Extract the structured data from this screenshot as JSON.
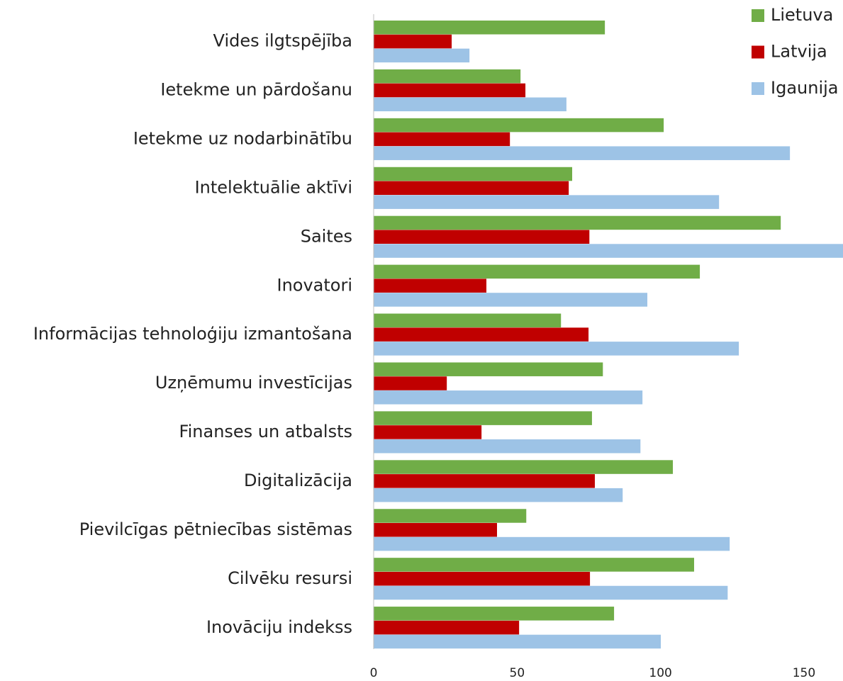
{
  "chart_data": {
    "type": "barh",
    "categories": [
      "Vides ilgtspējība",
      "Ietekme un pārdošanu",
      "Ietekme uz nodarbinātību",
      "Intelektuālie aktīvi",
      "Saites",
      "Inovatori",
      "Informācijas tehnoloģiju izmantošana",
      "Uzņēmumu investīcijas",
      "Finanses un atbalsts",
      "Digitalizācija",
      "Pievilcīgas pētniecības sistēmas",
      "Cilvēku resursi",
      "Inovāciju indekss"
    ],
    "series": [
      {
        "name": "Lietuva",
        "color": "#70ad47",
        "values": [
          80.6,
          51.2,
          101.1,
          69.2,
          141.9,
          113.7,
          65.3,
          79.9,
          76.1,
          104.3,
          53.2,
          111.7,
          83.8
        ]
      },
      {
        "name": "Latvija",
        "color": "#c00000",
        "values": [
          27.2,
          52.9,
          47.5,
          68.0,
          75.2,
          39.3,
          74.9,
          25.5,
          37.6,
          77.1,
          43.0,
          75.4,
          50.7
        ]
      },
      {
        "name": "Igaunija",
        "color": "#9dc3e6",
        "values": [
          33.4,
          67.2,
          145.1,
          120.4,
          164,
          95.4,
          127.3,
          93.7,
          93.0,
          86.8,
          124.1,
          123.4,
          100.1
        ]
      }
    ],
    "xlim": [
      0,
      163.6
    ],
    "xticks": [
      0,
      50,
      100,
      150
    ],
    "legend": "top-right"
  }
}
